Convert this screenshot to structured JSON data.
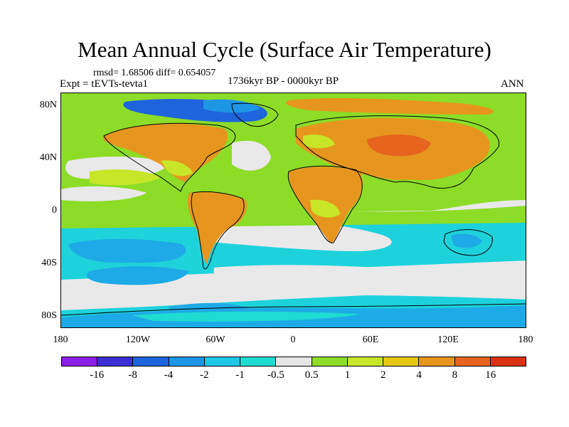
{
  "title": "Mean Annual Cycle (Surface Air Temperature)",
  "stats_text": "rmsd= 1.68506 diff= 0.654057",
  "experiment_text": "Expt = tEVTs-tevta1",
  "period_text": "1736kyr BP - 0000kyr BP",
  "season": "ANN",
  "map": {
    "lat_ticks": [
      "80N",
      "40N",
      "0",
      "40S",
      "80S"
    ],
    "lat_values": [
      80,
      40,
      0,
      -40,
      -80
    ],
    "lat_range": [
      -90,
      90
    ],
    "lon_ticks": [
      "180",
      "120W",
      "60W",
      "0",
      "60E",
      "120E",
      "180"
    ],
    "lon_values": [
      -180,
      -120,
      -60,
      0,
      60,
      120,
      180
    ],
    "lon_range": [
      -180,
      180
    ]
  },
  "colorbar": {
    "colors": [
      "#8c1ee6",
      "#3c2ed2",
      "#1e64dc",
      "#1e96e6",
      "#1ec8e6",
      "#1edcd2",
      "#e6e6e6",
      "#8cdc28",
      "#c8e628",
      "#e6c814",
      "#e6961e",
      "#e6641e",
      "#dc3214"
    ],
    "labels": [
      "-16",
      "-8",
      "-4",
      "-2",
      "-1",
      "-0.5",
      "0.5",
      "1",
      "2",
      "4",
      "8",
      "16"
    ]
  }
}
